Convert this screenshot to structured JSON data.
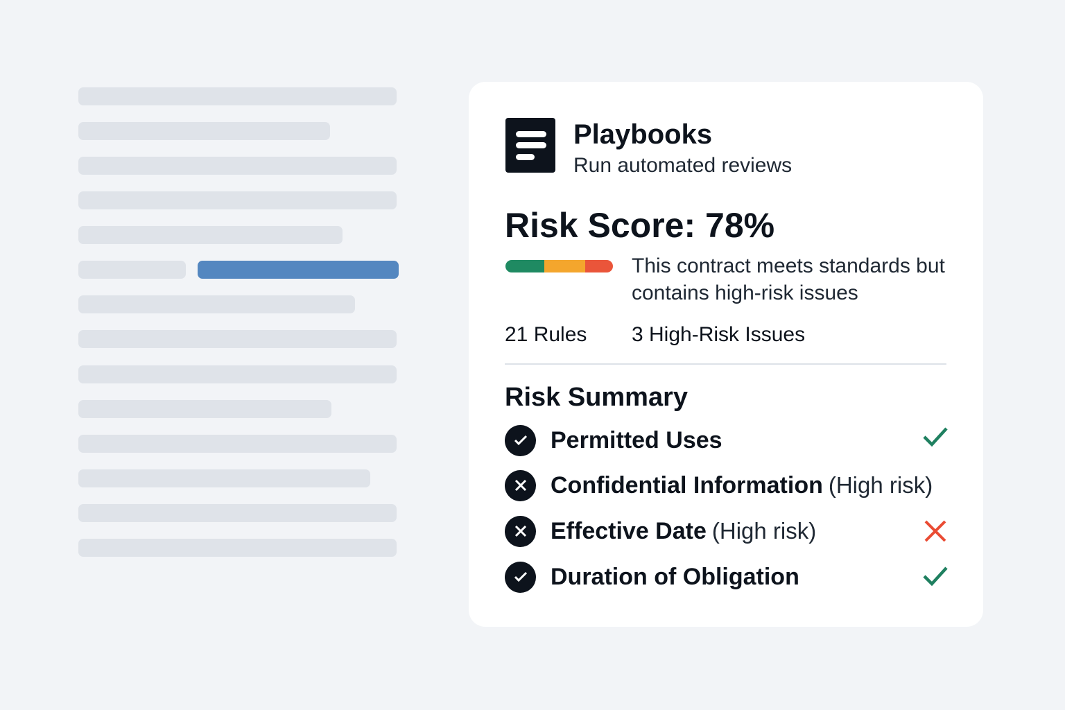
{
  "document_preview": {
    "highlight_color": "#5487c0"
  },
  "card": {
    "title": "Playbooks",
    "subtitle": "Run automated reviews",
    "logo_icon": "document-lines-icon",
    "risk_score_label": "Risk Score: 78%",
    "risk_score_percent": 78,
    "risk_bar_colors": [
      "#1f8a62",
      "#f4a62d",
      "#ea553a"
    ],
    "description": "This contract meets standards but contains high-risk issues",
    "rules": "21 Rules",
    "high_risk_issues": "3 High-Risk Issues",
    "summary_title": "Risk Summary",
    "items": [
      {
        "label": "Permitted Uses",
        "note": "",
        "status": "pass",
        "status_icon": "check-icon"
      },
      {
        "label": "Confidential Information",
        "note": "(High risk)",
        "status": "fail",
        "status_icon": ""
      },
      {
        "label": "Effective Date",
        "note": "(High risk)",
        "status": "fail",
        "status_icon": "x-icon"
      },
      {
        "label": "Duration of Obligation",
        "note": "",
        "status": "pass",
        "status_icon": "check-icon"
      }
    ]
  }
}
